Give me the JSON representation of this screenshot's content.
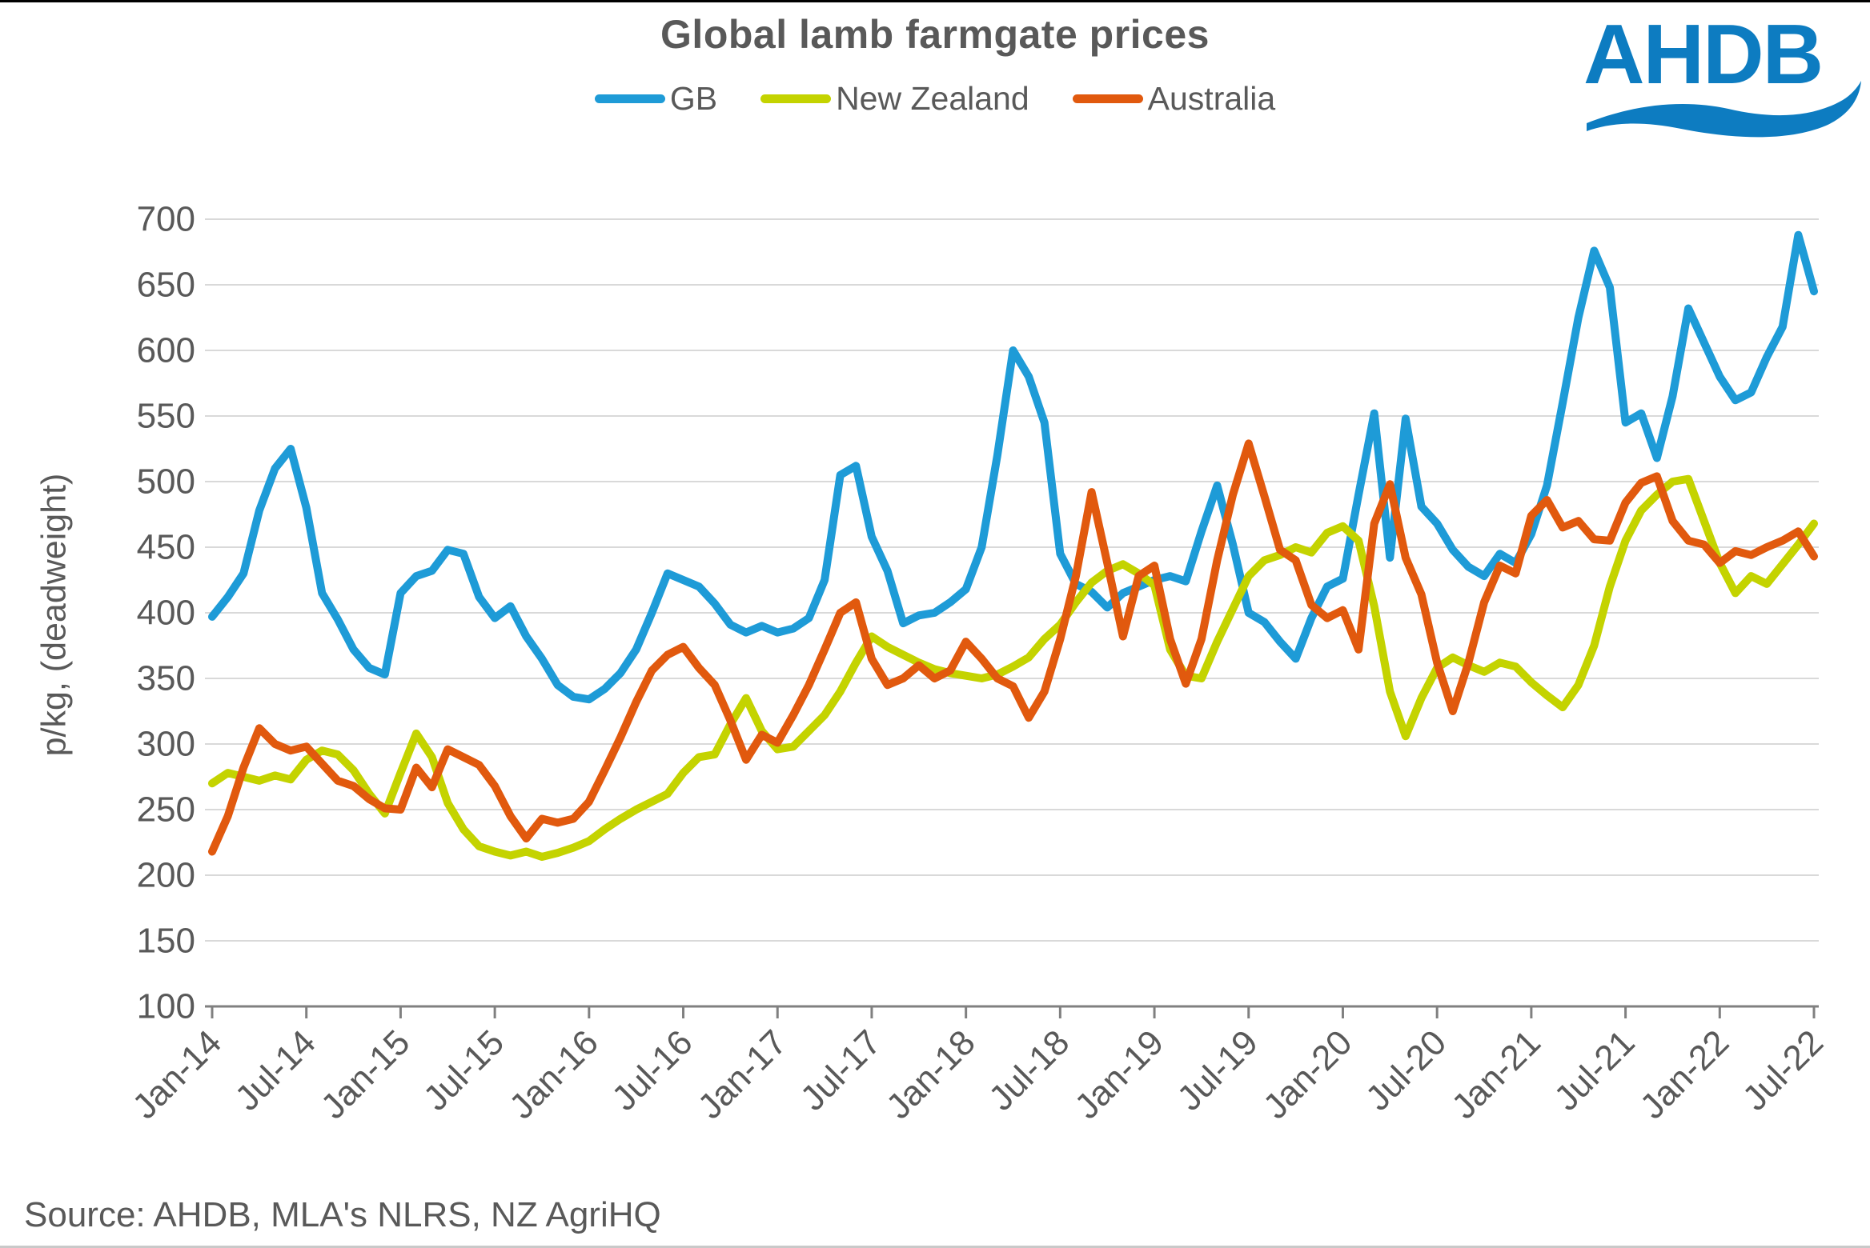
{
  "header": {
    "title": "Global lamb farmgate prices",
    "logo_text": "AHDB"
  },
  "source": {
    "text": "Source: AHDB, MLA's NLRS, NZ AgriHQ"
  },
  "logo": {
    "color": "#0d7cc1"
  },
  "chart_data": {
    "type": "line",
    "title": "Global lamb farmgate prices",
    "xlabel": "",
    "ylabel": "p/kg, (deadweight)",
    "ylim": [
      100,
      700
    ],
    "grid": "horizontal",
    "legend_position": "top",
    "y_ticks": [
      700,
      650,
      600,
      550,
      500,
      450,
      400,
      350,
      300,
      250,
      200,
      150,
      100
    ],
    "x_tick_labels": [
      "Jan-14",
      "Jul-14",
      "Jan-15",
      "Jul-15",
      "Jan-16",
      "Jul-16",
      "Jan-17",
      "Jul-17",
      "Jan-18",
      "Jul-18",
      "Jan-19",
      "Jul-19",
      "Jan-20",
      "Jul-20",
      "Jan-21",
      "Jul-21",
      "Jan-22",
      "Jul-22"
    ],
    "x_start": "2014-01",
    "x_step_months": 1,
    "axis_color": "#808080",
    "gridline_color": "#d9d9d9",
    "label_color": "#595959",
    "series": [
      {
        "name": "GB",
        "color": "#1e9bd7",
        "values": [
          397,
          412,
          430,
          478,
          510,
          525,
          480,
          415,
          395,
          372,
          358,
          353,
          415,
          428,
          432,
          448,
          445,
          412,
          396,
          405,
          382,
          365,
          345,
          336,
          334,
          342,
          354,
          372,
          400,
          430,
          425,
          420,
          407,
          391,
          385,
          390,
          385,
          388,
          396,
          425,
          505,
          512,
          458,
          432,
          392,
          398,
          400,
          408,
          418,
          450,
          520,
          600,
          580,
          545,
          445,
          422,
          416,
          404,
          415,
          420,
          425,
          428,
          424,
          462,
          497,
          452,
          400,
          393,
          378,
          365,
          396,
          420,
          426,
          490,
          552,
          442,
          548,
          481,
          468,
          448,
          435,
          428,
          445,
          438,
          460,
          497,
          560,
          625,
          676,
          648,
          545,
          552,
          518,
          565,
          632,
          606,
          580,
          562,
          568,
          595,
          618,
          688,
          645
        ]
      },
      {
        "name": "New Zealand",
        "color": "#c4d300",
        "values": [
          270,
          278,
          275,
          272,
          276,
          273,
          288,
          295,
          292,
          280,
          262,
          247,
          278,
          308,
          290,
          255,
          235,
          222,
          218,
          215,
          218,
          214,
          217,
          221,
          226,
          235,
          243,
          250,
          256,
          262,
          278,
          290,
          292,
          315,
          335,
          310,
          296,
          298,
          310,
          322,
          340,
          362,
          382,
          374,
          368,
          362,
          357,
          354,
          352,
          350,
          353,
          359,
          366,
          380,
          391,
          408,
          423,
          432,
          437,
          430,
          421,
          372,
          352,
          350,
          378,
          403,
          428,
          440,
          444,
          450,
          446,
          461,
          466,
          455,
          405,
          340,
          306,
          335,
          358,
          366,
          360,
          355,
          362,
          359,
          347,
          337,
          328,
          345,
          375,
          420,
          455,
          478,
          490,
          500,
          502,
          470,
          438,
          415,
          428,
          422,
          437,
          452,
          468
        ]
      },
      {
        "name": "Australia",
        "color": "#e1590e",
        "values": [
          218,
          245,
          282,
          312,
          300,
          295,
          298,
          285,
          272,
          268,
          258,
          251,
          250,
          282,
          267,
          296,
          290,
          284,
          268,
          245,
          228,
          243,
          240,
          243,
          256,
          280,
          305,
          332,
          356,
          368,
          374,
          358,
          345,
          318,
          288,
          307,
          301,
          322,
          345,
          372,
          400,
          408,
          365,
          345,
          350,
          360,
          350,
          356,
          378,
          365,
          350,
          344,
          320,
          340,
          380,
          428,
          492,
          438,
          382,
          428,
          436,
          380,
          346,
          380,
          440,
          490,
          529,
          489,
          448,
          440,
          406,
          396,
          402,
          372,
          468,
          498,
          442,
          414,
          362,
          325,
          362,
          408,
          436,
          430,
          474,
          486,
          465,
          470,
          456,
          455,
          484,
          499,
          504,
          470,
          455,
          452,
          438,
          447,
          444,
          450,
          455,
          462,
          443
        ]
      }
    ]
  }
}
